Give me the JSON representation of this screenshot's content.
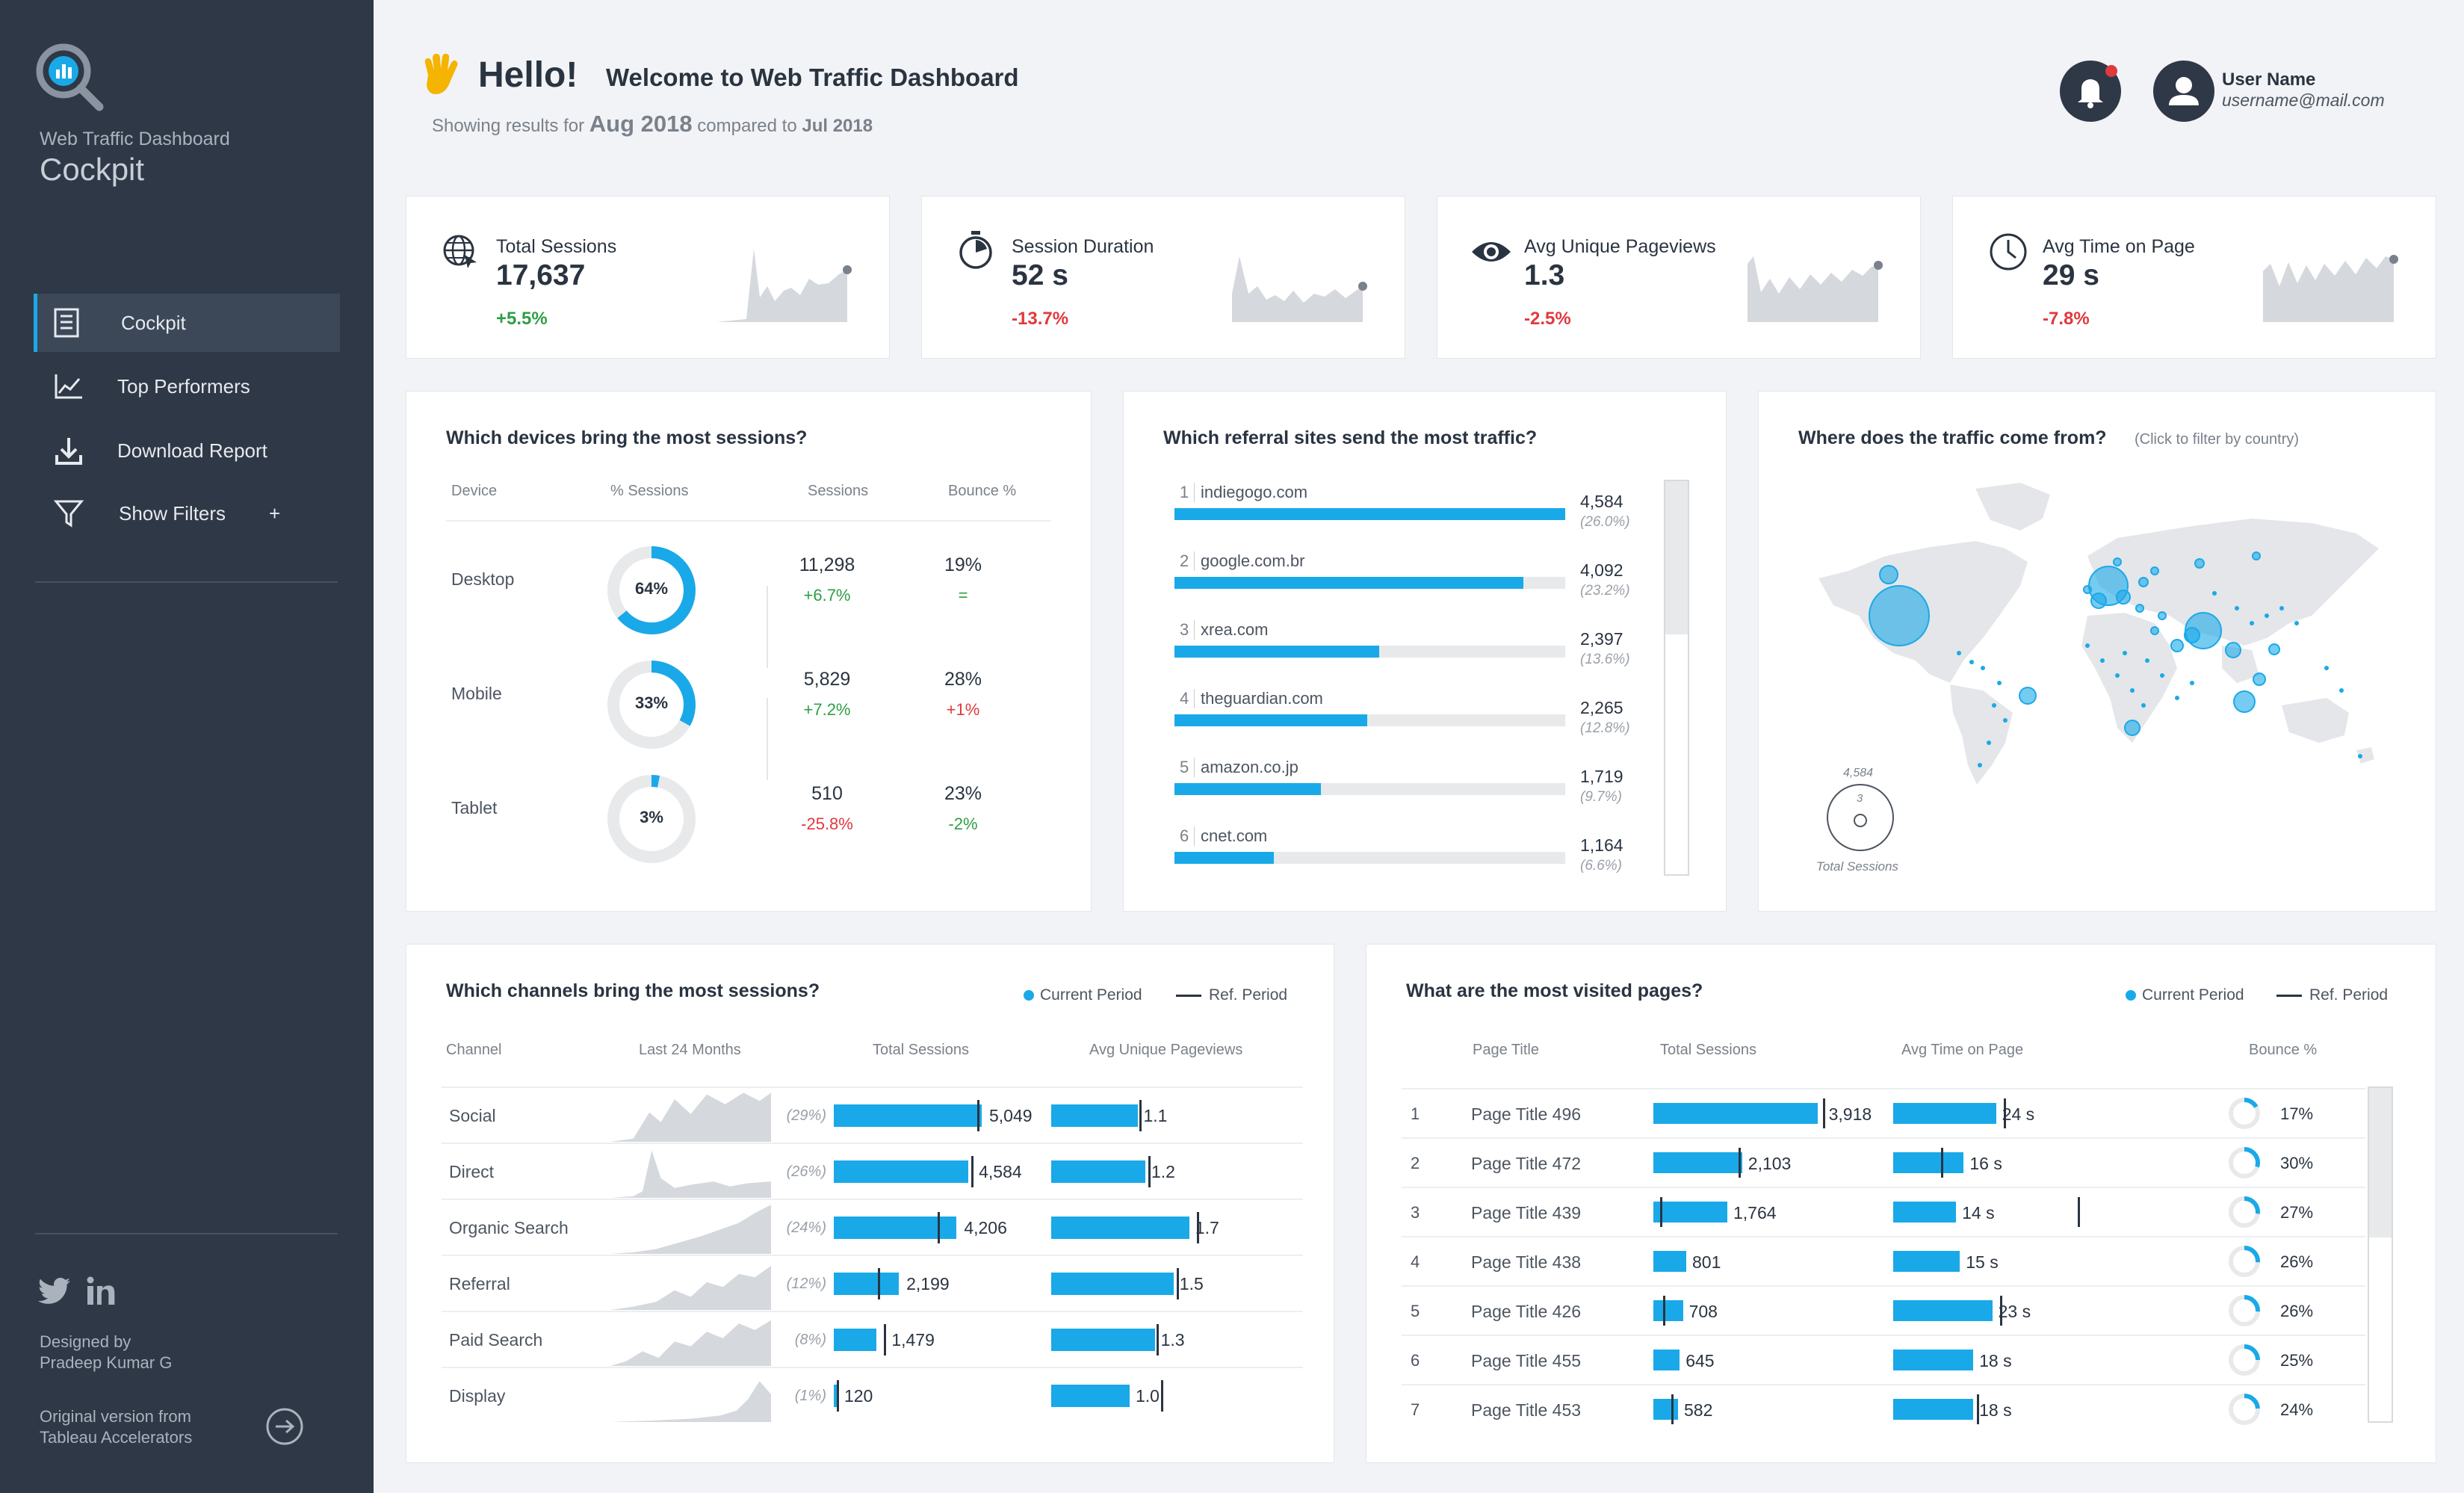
{
  "sidebar": {
    "subtitle": "Web Traffic Dashboard",
    "title": "Cockpit",
    "nav": [
      {
        "label": "Cockpit",
        "icon": "report-icon",
        "active": true
      },
      {
        "label": "Top Performers",
        "icon": "line-chart-icon",
        "active": false
      },
      {
        "label": "Download Report",
        "icon": "download-icon",
        "active": false
      },
      {
        "label": "Show Filters",
        "icon": "filter-icon",
        "active": false,
        "suffix": "+"
      }
    ],
    "designed_by_label": "Designed by",
    "designed_by_name": "Pradeep Kumar G",
    "original_line1": "Original version from",
    "original_line2": "Tableau Accelerators"
  },
  "header": {
    "hello": "Hello!",
    "welcome": "Welcome to Web Traffic Dashboard",
    "showing_prefix": "Showing results for",
    "period": "Aug 2018",
    "compared_label": "compared to",
    "ref_period": "Jul 2018",
    "user_name": "User Name",
    "user_email": "username@mail.com"
  },
  "kpis": [
    {
      "label": "Total Sessions",
      "value": "17,637",
      "change": "+5.5%",
      "trend": "pos",
      "icon": "globe-icon"
    },
    {
      "label": "Session Duration",
      "value": "52 s",
      "change": "-13.7%",
      "trend": "neg",
      "icon": "stopwatch-icon"
    },
    {
      "label": "Avg Unique Pageviews",
      "value": "1.3",
      "change": "-2.5%",
      "trend": "neg",
      "icon": "eye-icon"
    },
    {
      "label": "Avg Time on Page",
      "value": "29 s",
      "change": "-7.8%",
      "trend": "neg",
      "icon": "clock-icon"
    }
  ],
  "devices": {
    "title": "Which devices bring the most sessions?",
    "headers": [
      "Device",
      "% Sessions",
      "Sessions",
      "Bounce %"
    ],
    "rows": [
      {
        "device": "Desktop",
        "pct": "64%",
        "frac": 0.64,
        "sessions": "11,298",
        "sessions_change": "+6.7%",
        "s_trend": "pos",
        "bounce": "19%",
        "bounce_change": "=",
        "b_trend": "pos"
      },
      {
        "device": "Mobile",
        "pct": "33%",
        "frac": 0.33,
        "sessions": "5,829",
        "sessions_change": "+7.2%",
        "s_trend": "pos",
        "bounce": "28%",
        "bounce_change": "+1%",
        "b_trend": "neg"
      },
      {
        "device": "Tablet",
        "pct": "3%",
        "frac": 0.03,
        "sessions": "510",
        "sessions_change": "-25.8%",
        "s_trend": "neg",
        "bounce": "23%",
        "bounce_change": "-2%",
        "b_trend": "pos"
      }
    ]
  },
  "referrals": {
    "title": "Which referral sites send the most traffic?",
    "rows": [
      {
        "rank": "1",
        "site": "indiegogo.com",
        "value": "4,584",
        "pct": "(26.0%)",
        "frac": 1.0
      },
      {
        "rank": "2",
        "site": "google.com.br",
        "value": "4,092",
        "pct": "(23.2%)",
        "frac": 0.893
      },
      {
        "rank": "3",
        "site": "xrea.com",
        "value": "2,397",
        "pct": "(13.6%)",
        "frac": 0.523
      },
      {
        "rank": "4",
        "site": "theguardian.com",
        "value": "2,265",
        "pct": "(12.8%)",
        "frac": 0.494
      },
      {
        "rank": "5",
        "site": "amazon.co.jp",
        "value": "1,719",
        "pct": "(9.7%)",
        "frac": 0.375
      },
      {
        "rank": "6",
        "site": "cnet.com",
        "value": "1,164",
        "pct": "(6.6%)",
        "frac": 0.254
      }
    ]
  },
  "map": {
    "title": "Where does the traffic come from?",
    "hint": "(Click to filter by country)",
    "legend_max": "4,584",
    "legend_min": "3",
    "legend_label": "Total Sessions"
  },
  "channels": {
    "title": "Which channels bring the most sessions?",
    "legend_current": "Current Period",
    "legend_ref": "Ref. Period",
    "headers": [
      "Channel",
      "Last 24 Months",
      "Total Sessions",
      "Avg Unique Pageviews"
    ],
    "rows": [
      {
        "name": "Social",
        "pct": "(29%)",
        "sessions": "5,049",
        "s_frac": 1.0,
        "s_ref": 0.97,
        "pv": "1.1",
        "pv_frac": 0.55,
        "pv_ref": 0.56
      },
      {
        "name": "Direct",
        "pct": "(26%)",
        "sessions": "4,584",
        "s_frac": 0.91,
        "s_ref": 0.93,
        "pv": "1.2",
        "pv_frac": 0.6,
        "pv_ref": 0.62
      },
      {
        "name": "Organic Search",
        "pct": "(24%)",
        "sessions": "4,206",
        "s_frac": 0.83,
        "s_ref": 0.7,
        "pv": "1.7",
        "pv_frac": 0.88,
        "pv_ref": 0.93
      },
      {
        "name": "Referral",
        "pct": "(12%)",
        "sessions": "2,199",
        "s_frac": 0.44,
        "s_ref": 0.3,
        "pv": "1.5",
        "pv_frac": 0.78,
        "pv_ref": 0.8
      },
      {
        "name": "Paid Search",
        "pct": "(8%)",
        "sessions": "1,479",
        "s_frac": 0.29,
        "s_ref": 0.34,
        "pv": "1.3",
        "pv_frac": 0.66,
        "pv_ref": 0.67
      },
      {
        "name": "Display",
        "pct": "(1%)",
        "sessions": "120",
        "s_frac": 0.02,
        "s_ref": 0.02,
        "pv": "1.0",
        "pv_frac": 0.5,
        "pv_ref": 0.7
      }
    ]
  },
  "pages": {
    "title": "What are the most visited pages?",
    "legend_current": "Current Period",
    "legend_ref": "Ref. Period",
    "headers": [
      "Page Title",
      "Total Sessions",
      "Avg Time on Page",
      "Bounce %"
    ],
    "rows": [
      {
        "rank": "1",
        "title": "Page Title 496",
        "sessions": "3,918",
        "s_frac": 1.0,
        "s_ref": 1.03,
        "time": "24 s",
        "t_frac": 0.54,
        "t_ref": 0.58,
        "bounce": "17%",
        "b_frac": 0.17
      },
      {
        "rank": "2",
        "title": "Page Title 472",
        "sessions": "2,103",
        "s_frac": 0.54,
        "s_ref": 0.52,
        "time": "16 s",
        "t_frac": 0.37,
        "t_ref": 0.25,
        "bounce": "30%",
        "b_frac": 0.3
      },
      {
        "rank": "3",
        "title": "Page Title 439",
        "sessions": "1,764",
        "s_frac": 0.45,
        "s_ref": 0.04,
        "time": "14 s",
        "t_frac": 0.33,
        "t_ref": 0.97,
        "bounce": "27%",
        "b_frac": 0.27
      },
      {
        "rank": "4",
        "title": "Page Title 438",
        "sessions": "801",
        "s_frac": 0.2,
        "s_ref": null,
        "time": "15 s",
        "t_frac": 0.35,
        "t_ref": null,
        "bounce": "26%",
        "b_frac": 0.26
      },
      {
        "rank": "5",
        "title": "Page Title 426",
        "sessions": "708",
        "s_frac": 0.18,
        "s_ref": 0.06,
        "time": "23 s",
        "t_frac": 0.52,
        "t_ref": 0.56,
        "bounce": "26%",
        "b_frac": 0.26
      },
      {
        "rank": "6",
        "title": "Page Title 455",
        "sessions": "645",
        "s_frac": 0.16,
        "s_ref": null,
        "time": "18 s",
        "t_frac": 0.42,
        "t_ref": null,
        "bounce": "25%",
        "b_frac": 0.25
      },
      {
        "rank": "7",
        "title": "Page Title 453",
        "sessions": "582",
        "s_frac": 0.15,
        "s_ref": 0.11,
        "time": "18 s",
        "t_frac": 0.42,
        "t_ref": 0.44,
        "bounce": "24%",
        "b_frac": 0.24
      }
    ]
  },
  "colors": {
    "accent": "#1aa9e8",
    "sidebar": "#2f3846",
    "positive": "#2f9e46",
    "negative": "#e0393e",
    "spark": "#d5d8dd"
  }
}
